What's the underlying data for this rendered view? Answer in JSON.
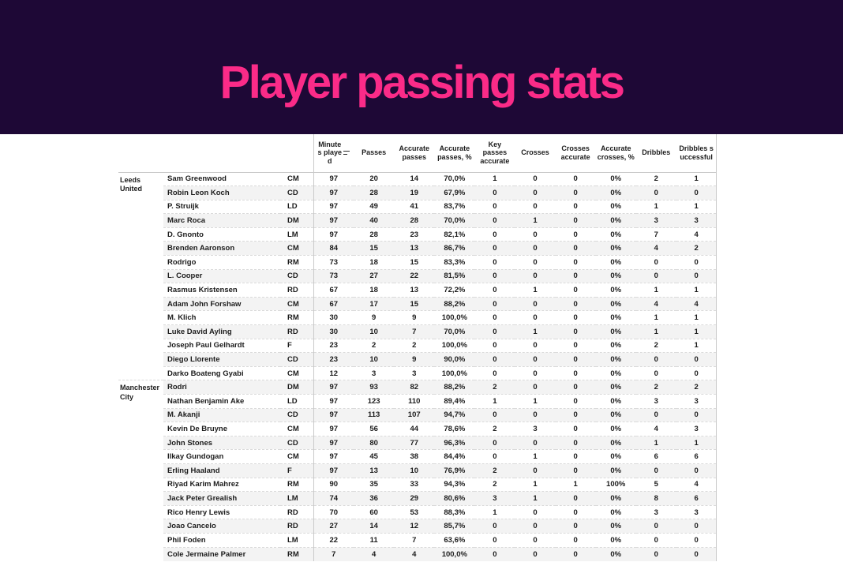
{
  "title": "Player passing stats",
  "colors": {
    "banner_bg": "#1e0836",
    "title_pink": "#fb2b88",
    "stripe": "#f3f3f3",
    "text": "#1c1c1c"
  },
  "chart_data": {
    "type": "table",
    "title": "Player passing stats",
    "sorted_column": "Minutes played",
    "columns": [
      "Minutes played",
      "Passes",
      "Accurate passes",
      "Accurate passes, %",
      "Key passes accurate",
      "Crosses",
      "Crosses accurate",
      "Accurate crosses, %",
      "Dribbles",
      "Dribbles successful"
    ],
    "groups": [
      {
        "team": "Leeds United",
        "rows": [
          {
            "player": "Sam Greenwood",
            "position": "CM",
            "values": [
              "97",
              "20",
              "14",
              "70,0%",
              "1",
              "0",
              "0",
              "0%",
              "2",
              "1"
            ]
          },
          {
            "player": "Robin Leon Koch",
            "position": "CD",
            "values": [
              "97",
              "28",
              "19",
              "67,9%",
              "0",
              "0",
              "0",
              "0%",
              "0",
              "0"
            ]
          },
          {
            "player": "P. Struijk",
            "position": "LD",
            "values": [
              "97",
              "49",
              "41",
              "83,7%",
              "0",
              "0",
              "0",
              "0%",
              "1",
              "1"
            ]
          },
          {
            "player": "Marc Roca",
            "position": "DM",
            "values": [
              "97",
              "40",
              "28",
              "70,0%",
              "0",
              "1",
              "0",
              "0%",
              "3",
              "3"
            ]
          },
          {
            "player": "D. Gnonto",
            "position": "LM",
            "values": [
              "97",
              "28",
              "23",
              "82,1%",
              "0",
              "0",
              "0",
              "0%",
              "7",
              "4"
            ]
          },
          {
            "player": "Brenden Aaronson",
            "position": "CM",
            "values": [
              "84",
              "15",
              "13",
              "86,7%",
              "0",
              "0",
              "0",
              "0%",
              "4",
              "2"
            ]
          },
          {
            "player": "Rodrigo",
            "position": "RM",
            "values": [
              "73",
              "18",
              "15",
              "83,3%",
              "0",
              "0",
              "0",
              "0%",
              "0",
              "0"
            ]
          },
          {
            "player": "L. Cooper",
            "position": "CD",
            "values": [
              "73",
              "27",
              "22",
              "81,5%",
              "0",
              "0",
              "0",
              "0%",
              "0",
              "0"
            ]
          },
          {
            "player": "Rasmus Kristensen",
            "position": "RD",
            "values": [
              "67",
              "18",
              "13",
              "72,2%",
              "0",
              "1",
              "0",
              "0%",
              "1",
              "1"
            ]
          },
          {
            "player": "Adam John Forshaw",
            "position": "CM",
            "values": [
              "67",
              "17",
              "15",
              "88,2%",
              "0",
              "0",
              "0",
              "0%",
              "4",
              "4"
            ]
          },
          {
            "player": "M. Klich",
            "position": "RM",
            "values": [
              "30",
              "9",
              "9",
              "100,0%",
              "0",
              "0",
              "0",
              "0%",
              "1",
              "1"
            ]
          },
          {
            "player": "Luke David Ayling",
            "position": "RD",
            "values": [
              "30",
              "10",
              "7",
              "70,0%",
              "0",
              "1",
              "0",
              "0%",
              "1",
              "1"
            ]
          },
          {
            "player": "Joseph Paul Gelhardt",
            "position": "F",
            "values": [
              "23",
              "2",
              "2",
              "100,0%",
              "0",
              "0",
              "0",
              "0%",
              "2",
              "1"
            ]
          },
          {
            "player": "Diego Llorente",
            "position": "CD",
            "values": [
              "23",
              "10",
              "9",
              "90,0%",
              "0",
              "0",
              "0",
              "0%",
              "0",
              "0"
            ]
          },
          {
            "player": "Darko Boateng Gyabi",
            "position": "CM",
            "values": [
              "12",
              "3",
              "3",
              "100,0%",
              "0",
              "0",
              "0",
              "0%",
              "0",
              "0"
            ]
          }
        ]
      },
      {
        "team": "Manchester City",
        "rows": [
          {
            "player": "Rodri",
            "position": "DM",
            "values": [
              "97",
              "93",
              "82",
              "88,2%",
              "2",
              "0",
              "0",
              "0%",
              "2",
              "2"
            ]
          },
          {
            "player": "Nathan Benjamin Ake",
            "position": "LD",
            "values": [
              "97",
              "123",
              "110",
              "89,4%",
              "1",
              "1",
              "0",
              "0%",
              "3",
              "3"
            ]
          },
          {
            "player": "M. Akanji",
            "position": "CD",
            "values": [
              "97",
              "113",
              "107",
              "94,7%",
              "0",
              "0",
              "0",
              "0%",
              "0",
              "0"
            ]
          },
          {
            "player": "Kevin De Bruyne",
            "position": "CM",
            "values": [
              "97",
              "56",
              "44",
              "78,6%",
              "2",
              "3",
              "0",
              "0%",
              "4",
              "3"
            ]
          },
          {
            "player": "John Stones",
            "position": "CD",
            "values": [
              "97",
              "80",
              "77",
              "96,3%",
              "0",
              "0",
              "0",
              "0%",
              "1",
              "1"
            ]
          },
          {
            "player": "Ilkay Gundogan",
            "position": "CM",
            "values": [
              "97",
              "45",
              "38",
              "84,4%",
              "0",
              "1",
              "0",
              "0%",
              "6",
              "6"
            ]
          },
          {
            "player": "Erling Haaland",
            "position": "F",
            "values": [
              "97",
              "13",
              "10",
              "76,9%",
              "2",
              "0",
              "0",
              "0%",
              "0",
              "0"
            ]
          },
          {
            "player": "Riyad Karim Mahrez",
            "position": "RM",
            "values": [
              "90",
              "35",
              "33",
              "94,3%",
              "2",
              "1",
              "1",
              "100%",
              "5",
              "4"
            ]
          },
          {
            "player": "Jack Peter Grealish",
            "position": "LM",
            "values": [
              "74",
              "36",
              "29",
              "80,6%",
              "3",
              "1",
              "0",
              "0%",
              "8",
              "6"
            ]
          },
          {
            "player": "Rico Henry Lewis",
            "position": "RD",
            "values": [
              "70",
              "60",
              "53",
              "88,3%",
              "1",
              "0",
              "0",
              "0%",
              "3",
              "3"
            ]
          },
          {
            "player": "Joao Cancelo",
            "position": "RD",
            "values": [
              "27",
              "14",
              "12",
              "85,7%",
              "0",
              "0",
              "0",
              "0%",
              "0",
              "0"
            ]
          },
          {
            "player": "Phil Foden",
            "position": "LM",
            "values": [
              "22",
              "11",
              "7",
              "63,6%",
              "0",
              "0",
              "0",
              "0%",
              "0",
              "0"
            ]
          },
          {
            "player": "Cole Jermaine Palmer",
            "position": "RM",
            "values": [
              "7",
              "4",
              "4",
              "100,0%",
              "0",
              "0",
              "0",
              "0%",
              "0",
              "0"
            ]
          }
        ]
      }
    ]
  }
}
